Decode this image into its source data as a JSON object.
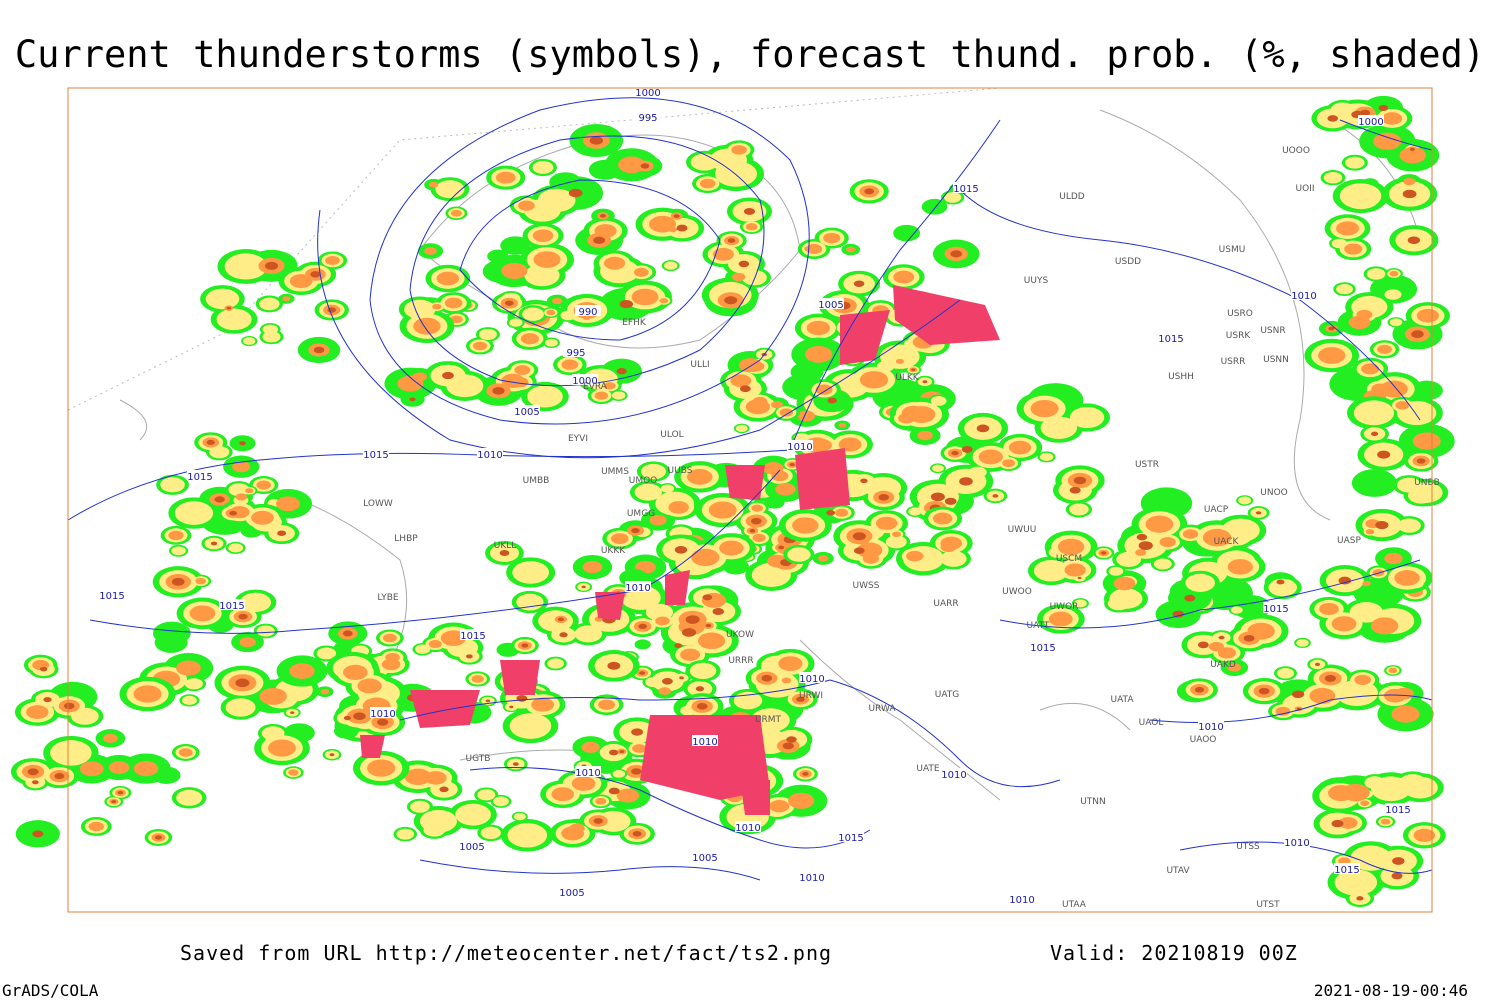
{
  "title": "Current thunderstorms (symbols), forecast thund. prob. (%, shaded)",
  "footer": {
    "source": "Saved from URL http://meteocenter.net/fact/ts2.png",
    "valid": "Valid: 20210819 00Z",
    "credit": "GrADS/COLA",
    "timestamp": "2021-08-19-00:46"
  },
  "contour_labels": [
    "1000",
    "995",
    "990",
    "995",
    "1000",
    "1005",
    "1010",
    "1015",
    "1015",
    "1015",
    "1015",
    "1015",
    "1010",
    "1010",
    "1005",
    "1015",
    "1010",
    "1015",
    "1000",
    "1010",
    "1010",
    "1010",
    "1010",
    "1005",
    "1005",
    "1005",
    "1010",
    "1010",
    "1015",
    "1010",
    "1015",
    "1015",
    "1010",
    "1010",
    "1015",
    "1015",
    "1010"
  ],
  "station_labels": [
    "ULDD",
    "USDD",
    "UUYS",
    "USMU",
    "UOOO",
    "UOII",
    "USRO",
    "USRK",
    "USNR",
    "USRR",
    "USNN",
    "USHH",
    "USTR",
    "UNOO",
    "UACP",
    "UACK",
    "UASP",
    "UNBB",
    "USCM",
    "UWOO",
    "UWOR",
    "UATT",
    "UAKD",
    "UATA",
    "UAOL",
    "UAOO",
    "UATG",
    "UATE",
    "UTNN",
    "UTSS",
    "UTAV",
    "UTAA",
    "UTST",
    "ULKK",
    "ULLI",
    "ULOL",
    "UMMS",
    "UMOO",
    "UUBS",
    "UMBB",
    "UMGG",
    "UKLL",
    "UKKK",
    "UKOW",
    "URRR",
    "URWI",
    "URWA",
    "UWSS",
    "UARR",
    "UWUU",
    "URMT",
    "UGTB",
    "EVRA",
    "EYVI",
    "EFHK",
    "LHBP",
    "LYBE",
    "LOWW"
  ]
}
